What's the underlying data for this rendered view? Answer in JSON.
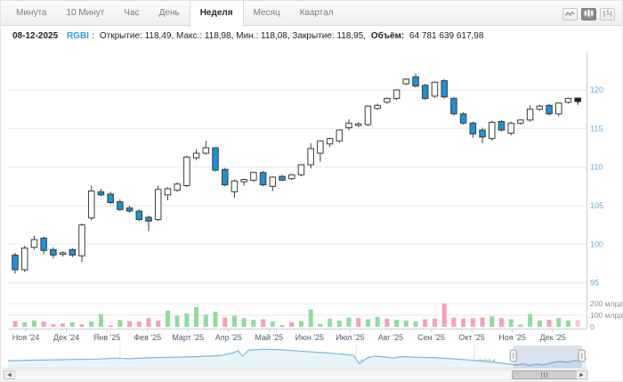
{
  "toolbar": {
    "tabs": [
      {
        "label": "Минута",
        "active": false
      },
      {
        "label": "10 Минут",
        "active": false
      },
      {
        "label": "Час",
        "active": false
      },
      {
        "label": "День",
        "active": false
      },
      {
        "label": "Неделя",
        "active": true
      },
      {
        "label": "Месяц",
        "active": false
      },
      {
        "label": "Квартал",
        "active": false
      }
    ],
    "chart_type_buttons": [
      {
        "name": "line-chart",
        "active": false
      },
      {
        "name": "candlestick-chart",
        "active": true
      },
      {
        "name": "ohlc-chart",
        "active": false
      }
    ]
  },
  "info_bar": {
    "date": "08-12-2025",
    "ticker": "RGBI",
    "colon": ":",
    "ohlc_text": "Открытие: 118,49, Макс.: 118,98, Мин.: 118,08, Закрытие: 118,95,",
    "volume_label": "Объём:",
    "volume_value": "64 781 639 617,98"
  },
  "scrollbar": {
    "left_arrow": "◄",
    "right_arrow": "►"
  },
  "chart_data": {
    "type": "candlestick",
    "title": "RGBI — недельный график",
    "colors": {
      "up": "#ffffff",
      "down": "#1b93d8",
      "stroke": "#3a3a3a",
      "current": "#222222",
      "vol_up": "#8fdc9f",
      "vol_down": "#f5a0ba",
      "vol_current": "#f9c9d9",
      "y_label": "#64aed8",
      "x_label": "#4f6071",
      "vol_label": "#8a9099",
      "grid": "#e9e9e9",
      "axis_line": "#cccccc",
      "nav_line": "#79b9dc",
      "nav_fill": "#e9f4fa",
      "nav_mask": "#5b7db1",
      "nav_label": "#9aa0a6"
    },
    "y_axis": {
      "side": "right",
      "ticks": [
        95,
        100,
        105,
        110,
        115,
        120
      ]
    },
    "volume_axis": {
      "ticks": [
        {
          "v": 0,
          "label": "0"
        },
        {
          "v": 100,
          "label": "100 млрд"
        },
        {
          "v": 200,
          "label": "200 млрд"
        }
      ]
    },
    "x_axis": {
      "months": [
        "Ноя '24",
        "Дек '24",
        "Янв '25",
        "Фев '25",
        "Март '25",
        "Апр '25",
        "Май '25",
        "Июн '25",
        "Июл '25",
        "Авг '25",
        "Сен '25",
        "Окт '25",
        "Ноя '25",
        "Дек '25"
      ]
    },
    "candles": [
      [
        98.6,
        98.9,
        96.2,
        96.7
      ],
      [
        96.7,
        99.8,
        96.4,
        99.5
      ],
      [
        99.6,
        101.1,
        99.3,
        100.6
      ],
      [
        100.8,
        101.0,
        98.7,
        99.2
      ],
      [
        99.3,
        99.6,
        98.2,
        98.6
      ],
      [
        98.7,
        99.1,
        98.4,
        98.9
      ],
      [
        99.3,
        99.5,
        98.3,
        98.6
      ],
      [
        98.5,
        102.7,
        97.7,
        102.5
      ],
      [
        103.4,
        107.6,
        103.1,
        106.9
      ],
      [
        106.8,
        107.2,
        106.2,
        106.4
      ],
      [
        106.5,
        106.8,
        105.2,
        105.4
      ],
      [
        105.5,
        105.8,
        104.3,
        104.5
      ],
      [
        104.7,
        105.0,
        104.1,
        104.3
      ],
      [
        104.3,
        104.5,
        103.0,
        103.2
      ],
      [
        103.5,
        103.7,
        101.7,
        103.0
      ],
      [
        103.2,
        107.6,
        103.0,
        107.1
      ],
      [
        106.4,
        107.4,
        105.7,
        107.2
      ],
      [
        107.0,
        108.0,
        106.8,
        107.8
      ],
      [
        107.6,
        111.5,
        107.4,
        111.3
      ],
      [
        111.2,
        112.3,
        110.9,
        111.8
      ],
      [
        111.8,
        113.4,
        111.6,
        112.5
      ],
      [
        112.5,
        112.6,
        109.4,
        109.6
      ],
      [
        109.7,
        109.9,
        107.5,
        107.7
      ],
      [
        106.8,
        108.4,
        106.0,
        108.2
      ],
      [
        108.1,
        108.5,
        107.6,
        108.4
      ],
      [
        108.3,
        109.4,
        108.1,
        109.3
      ],
      [
        109.3,
        109.5,
        107.5,
        107.7
      ],
      [
        107.5,
        108.8,
        106.9,
        108.7
      ],
      [
        108.8,
        109.0,
        108.2,
        108.3
      ],
      [
        108.5,
        109.1,
        108.3,
        109.0
      ],
      [
        109.0,
        110.4,
        108.8,
        110.3
      ],
      [
        110.3,
        113.1,
        109.8,
        112.4
      ],
      [
        111.8,
        113.5,
        110.7,
        113.4
      ],
      [
        113.0,
        113.8,
        112.6,
        113.7
      ],
      [
        113.4,
        114.9,
        113.2,
        114.8
      ],
      [
        115.1,
        116.2,
        114.8,
        115.7
      ],
      [
        115.4,
        115.8,
        115.2,
        115.6
      ],
      [
        115.5,
        118.0,
        115.3,
        117.9
      ],
      [
        117.6,
        118.2,
        117.4,
        118.0
      ],
      [
        118.4,
        119.0,
        118.2,
        118.9
      ],
      [
        118.9,
        120.1,
        118.7,
        120.0
      ],
      [
        120.8,
        121.5,
        120.6,
        121.4
      ],
      [
        121.7,
        122.1,
        120.3,
        120.5
      ],
      [
        120.6,
        120.8,
        118.7,
        118.9
      ],
      [
        119.2,
        121.1,
        119.0,
        121.0
      ],
      [
        121.2,
        121.4,
        118.9,
        119.1
      ],
      [
        118.9,
        119.1,
        116.7,
        116.9
      ],
      [
        116.9,
        117.1,
        115.5,
        115.7
      ],
      [
        115.7,
        115.9,
        113.8,
        114.3
      ],
      [
        114.8,
        115.1,
        113.1,
        113.9
      ],
      [
        113.7,
        116.0,
        113.4,
        115.8
      ],
      [
        115.9,
        116.1,
        114.6,
        114.8
      ],
      [
        114.4,
        115.9,
        114.1,
        115.7
      ],
      [
        115.7,
        116.2,
        115.5,
        116.1
      ],
      [
        116.1,
        118.0,
        115.9,
        117.5
      ],
      [
        117.5,
        118.1,
        117.3,
        117.9
      ],
      [
        118.0,
        118.2,
        116.7,
        116.9
      ],
      [
        116.9,
        118.4,
        116.6,
        118.3
      ],
      [
        118.4,
        119.0,
        118.2,
        118.9
      ],
      [
        118.49,
        118.98,
        118.08,
        118.95
      ]
    ],
    "last_candle_is_current": true,
    "volumes": [
      [
        50,
        "p"
      ],
      [
        38,
        "g"
      ],
      [
        55,
        "g"
      ],
      [
        45,
        "p"
      ],
      [
        22,
        "p"
      ],
      [
        28,
        "p"
      ],
      [
        38,
        "g"
      ],
      [
        22,
        "p"
      ],
      [
        45,
        "g"
      ],
      [
        110,
        "g"
      ],
      [
        10,
        "p"
      ],
      [
        60,
        "g"
      ],
      [
        48,
        "p"
      ],
      [
        45,
        "p"
      ],
      [
        75,
        "p"
      ],
      [
        55,
        "p"
      ],
      [
        140,
        "g"
      ],
      [
        95,
        "g"
      ],
      [
        115,
        "g"
      ],
      [
        170,
        "g"
      ],
      [
        105,
        "g"
      ],
      [
        130,
        "g"
      ],
      [
        80,
        "p"
      ],
      [
        95,
        "g"
      ],
      [
        75,
        "g"
      ],
      [
        60,
        "g"
      ],
      [
        65,
        "p"
      ],
      [
        45,
        "g"
      ],
      [
        15,
        "g"
      ],
      [
        40,
        "p"
      ],
      [
        50,
        "g"
      ],
      [
        150,
        "g"
      ],
      [
        25,
        "g"
      ],
      [
        70,
        "g"
      ],
      [
        55,
        "g"
      ],
      [
        80,
        "g"
      ],
      [
        75,
        "p"
      ],
      [
        65,
        "g"
      ],
      [
        85,
        "g"
      ],
      [
        70,
        "p"
      ],
      [
        60,
        "g"
      ],
      [
        55,
        "g"
      ],
      [
        45,
        "g"
      ],
      [
        65,
        "p"
      ],
      [
        70,
        "p"
      ],
      [
        200,
        "p"
      ],
      [
        80,
        "p"
      ],
      [
        70,
        "p"
      ],
      [
        75,
        "p"
      ],
      [
        80,
        "p"
      ],
      [
        90,
        "g"
      ],
      [
        75,
        "p"
      ],
      [
        65,
        "g"
      ],
      [
        20,
        "g"
      ],
      [
        110,
        "g"
      ],
      [
        55,
        "g"
      ],
      [
        60,
        "p"
      ],
      [
        75,
        "g"
      ],
      [
        55,
        "g"
      ],
      [
        60,
        "pl"
      ]
    ],
    "navigator": {
      "year_ticks": [
        {
          "year": 2018,
          "label": "2018"
        },
        {
          "year": 2020,
          "label": "2020"
        },
        {
          "year": 2022,
          "label": "2022"
        },
        {
          "year": 2024,
          "label": "2024"
        }
      ],
      "points": [
        [
          2016.1,
          0.3
        ],
        [
          2016.6,
          0.33
        ],
        [
          2017.1,
          0.35
        ],
        [
          2017.6,
          0.38
        ],
        [
          2017.9,
          0.42
        ],
        [
          2018.15,
          0.4
        ],
        [
          2018.45,
          0.44
        ],
        [
          2018.9,
          0.47
        ],
        [
          2019.3,
          0.5
        ],
        [
          2019.7,
          0.55
        ],
        [
          2019.9,
          0.68
        ],
        [
          2020.0,
          0.78
        ],
        [
          2020.07,
          0.52
        ],
        [
          2020.18,
          0.82
        ],
        [
          2020.45,
          0.86
        ],
        [
          2020.75,
          0.83
        ],
        [
          2021.05,
          0.77
        ],
        [
          2021.4,
          0.7
        ],
        [
          2021.75,
          0.62
        ],
        [
          2021.95,
          0.57
        ],
        [
          2022.05,
          0.16
        ],
        [
          2022.2,
          0.46
        ],
        [
          2022.35,
          0.52
        ],
        [
          2022.5,
          0.48
        ],
        [
          2022.62,
          0.42
        ],
        [
          2022.75,
          0.5
        ],
        [
          2023.0,
          0.47
        ],
        [
          2023.3,
          0.45
        ],
        [
          2023.6,
          0.4
        ],
        [
          2023.9,
          0.34
        ],
        [
          2024.15,
          0.28
        ],
        [
          2024.4,
          0.2
        ],
        [
          2024.6,
          0.13
        ],
        [
          2024.72,
          0.09
        ],
        [
          2024.82,
          0.15
        ],
        [
          2024.93,
          0.06
        ],
        [
          2025.05,
          0.13
        ],
        [
          2025.18,
          0.1
        ],
        [
          2025.3,
          0.2
        ],
        [
          2025.45,
          0.27
        ],
        [
          2025.58,
          0.23
        ],
        [
          2025.7,
          0.31
        ],
        [
          2025.8,
          0.28
        ],
        [
          2025.9,
          0.4
        ]
      ],
      "selection": {
        "from": 2024.66,
        "to": 2025.82
      }
    }
  }
}
